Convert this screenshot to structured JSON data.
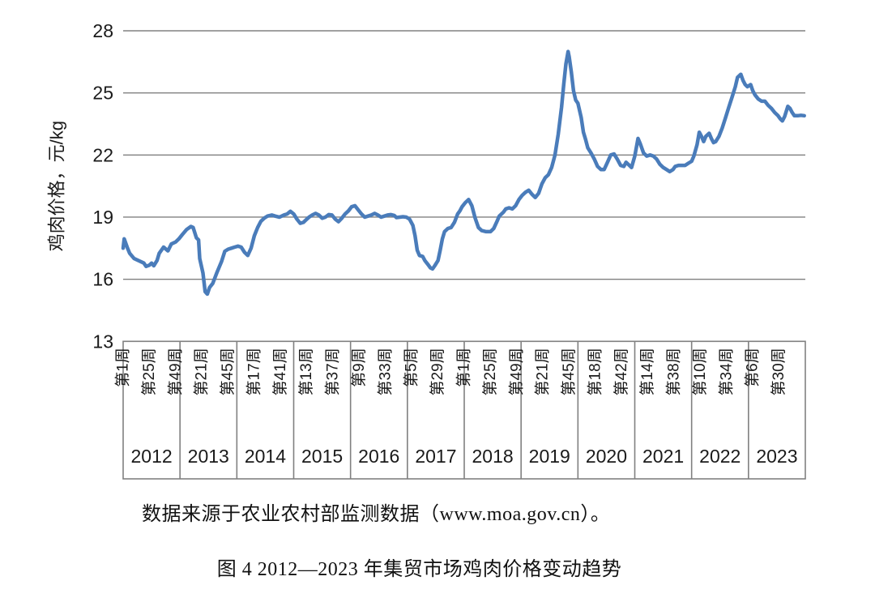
{
  "source_note": "数据来源于农业农村部监测数据（www.moa.gov.cn）。",
  "caption": "图 4 2012—2023 年集贸市场鸡肉价格变动趋势",
  "colors": {
    "line": "#4a7cba",
    "grid": "#808080",
    "box": "#808080",
    "text": "#1a1a1a"
  },
  "chart_data": {
    "type": "line",
    "title": "图 4 2012—2023 年集贸市场鸡肉价格变动趋势",
    "ylabel": "鸡肉价格，元/kg",
    "xlabel": "",
    "ylim": [
      13,
      28
    ],
    "y_ticks": [
      28,
      25,
      22,
      19,
      16,
      13
    ],
    "grid": "horizontal",
    "legend": "none",
    "weeks_per_year": 52,
    "tick_interval_weeks": 24,
    "week_tick_labels": [
      "第1周",
      "第25周",
      "第49周",
      "第21周",
      "第45周",
      "第17周",
      "第41周",
      "第13周",
      "第37周",
      "第9周",
      "第33周",
      "第5周",
      "第29周",
      "第1周",
      "第25周",
      "第49周",
      "第21周",
      "第45周",
      "第18周",
      "第42周",
      "第14周",
      "第38周",
      "第10周",
      "第34周",
      "第6周",
      "第30周"
    ],
    "year_labels": [
      "2012",
      "2013",
      "2014",
      "2015",
      "2016",
      "2017",
      "2018",
      "2019",
      "2020",
      "2021",
      "2022",
      "2023"
    ],
    "series": [
      {
        "name": "集贸市场鸡肉价格",
        "unit": "元/kg",
        "points": [
          [
            0,
            17.5
          ],
          [
            1,
            17.95
          ],
          [
            4,
            17.5
          ],
          [
            6,
            17.25
          ],
          [
            10,
            17.0
          ],
          [
            13,
            16.93
          ],
          [
            19,
            16.78
          ],
          [
            21,
            16.62
          ],
          [
            24,
            16.68
          ],
          [
            26,
            16.78
          ],
          [
            28,
            16.65
          ],
          [
            31,
            16.9
          ],
          [
            33,
            17.25
          ],
          [
            37,
            17.55
          ],
          [
            41,
            17.37
          ],
          [
            44,
            17.7
          ],
          [
            48,
            17.8
          ],
          [
            51,
            17.95
          ],
          [
            54,
            18.15
          ],
          [
            58,
            18.4
          ],
          [
            62,
            18.55
          ],
          [
            64,
            18.5
          ],
          [
            67,
            18.0
          ],
          [
            69,
            17.9
          ],
          [
            70,
            17.0
          ],
          [
            73,
            16.3
          ],
          [
            75,
            15.4
          ],
          [
            77,
            15.28
          ],
          [
            79,
            15.6
          ],
          [
            82,
            15.8
          ],
          [
            86,
            16.35
          ],
          [
            90,
            16.85
          ],
          [
            93,
            17.35
          ],
          [
            96,
            17.45
          ],
          [
            99,
            17.5
          ],
          [
            102,
            17.55
          ],
          [
            105,
            17.6
          ],
          [
            108,
            17.55
          ],
          [
            111,
            17.3
          ],
          [
            114,
            17.15
          ],
          [
            117,
            17.5
          ],
          [
            120,
            18.1
          ],
          [
            123,
            18.5
          ],
          [
            126,
            18.8
          ],
          [
            129,
            18.95
          ],
          [
            132,
            19.05
          ],
          [
            136,
            19.1
          ],
          [
            139,
            19.05
          ],
          [
            143,
            19.0
          ],
          [
            147,
            19.1
          ],
          [
            150,
            19.15
          ],
          [
            153,
            19.28
          ],
          [
            156,
            19.15
          ],
          [
            159,
            18.9
          ],
          [
            162,
            18.7
          ],
          [
            165,
            18.75
          ],
          [
            167,
            18.85
          ],
          [
            170,
            19.0
          ],
          [
            173,
            19.1
          ],
          [
            176,
            19.18
          ],
          [
            179,
            19.1
          ],
          [
            182,
            18.95
          ],
          [
            185,
            19.0
          ],
          [
            188,
            19.12
          ],
          [
            191,
            19.1
          ],
          [
            194,
            18.9
          ],
          [
            197,
            18.78
          ],
          [
            200,
            18.95
          ],
          [
            203,
            19.15
          ],
          [
            206,
            19.3
          ],
          [
            209,
            19.5
          ],
          [
            212,
            19.55
          ],
          [
            215,
            19.35
          ],
          [
            218,
            19.15
          ],
          [
            221,
            19.0
          ],
          [
            224,
            19.05
          ],
          [
            227,
            19.1
          ],
          [
            230,
            19.18
          ],
          [
            233,
            19.1
          ],
          [
            236,
            19.0
          ],
          [
            239,
            19.05
          ],
          [
            242,
            19.1
          ],
          [
            245,
            19.12
          ],
          [
            248,
            19.08
          ],
          [
            250,
            18.98
          ],
          [
            253,
            19.0
          ],
          [
            256,
            19.02
          ],
          [
            259,
            19.0
          ],
          [
            262,
            18.9
          ],
          [
            265,
            18.6
          ],
          [
            267,
            18.1
          ],
          [
            269,
            17.4
          ],
          [
            271,
            17.15
          ],
          [
            274,
            17.1
          ],
          [
            276,
            16.9
          ],
          [
            279,
            16.7
          ],
          [
            281,
            16.55
          ],
          [
            283,
            16.5
          ],
          [
            285,
            16.65
          ],
          [
            288,
            16.9
          ],
          [
            290,
            17.4
          ],
          [
            292,
            17.95
          ],
          [
            294,
            18.3
          ],
          [
            297,
            18.45
          ],
          [
            300,
            18.5
          ],
          [
            303,
            18.75
          ],
          [
            306,
            19.15
          ],
          [
            308,
            19.3
          ],
          [
            310,
            19.5
          ],
          [
            313,
            19.7
          ],
          [
            316,
            19.85
          ],
          [
            319,
            19.55
          ],
          [
            322,
            18.95
          ],
          [
            325,
            18.5
          ],
          [
            328,
            18.35
          ],
          [
            332,
            18.3
          ],
          [
            336,
            18.3
          ],
          [
            339,
            18.45
          ],
          [
            342,
            18.8
          ],
          [
            344,
            19.05
          ],
          [
            348,
            19.25
          ],
          [
            350,
            19.4
          ],
          [
            353,
            19.45
          ],
          [
            356,
            19.4
          ],
          [
            359,
            19.55
          ],
          [
            362,
            19.85
          ],
          [
            365,
            20.05
          ],
          [
            368,
            20.2
          ],
          [
            371,
            20.3
          ],
          [
            374,
            20.1
          ],
          [
            377,
            19.95
          ],
          [
            380,
            20.15
          ],
          [
            383,
            20.6
          ],
          [
            386,
            20.9
          ],
          [
            389,
            21.05
          ],
          [
            392,
            21.4
          ],
          [
            395,
            22.0
          ],
          [
            398,
            23.0
          ],
          [
            401,
            24.3
          ],
          [
            403,
            25.4
          ],
          [
            405,
            26.4
          ],
          [
            407,
            27.0
          ],
          [
            408,
            26.75
          ],
          [
            410,
            26.0
          ],
          [
            412,
            25.1
          ],
          [
            414,
            24.65
          ],
          [
            416,
            24.5
          ],
          [
            419,
            23.8
          ],
          [
            421,
            23.1
          ],
          [
            423,
            22.75
          ],
          [
            425,
            22.35
          ],
          [
            428,
            22.1
          ],
          [
            431,
            21.8
          ],
          [
            434,
            21.45
          ],
          [
            437,
            21.3
          ],
          [
            440,
            21.3
          ],
          [
            443,
            21.65
          ],
          [
            446,
            22.0
          ],
          [
            449,
            22.05
          ],
          [
            452,
            21.8
          ],
          [
            455,
            21.5
          ],
          [
            458,
            21.45
          ],
          [
            460,
            21.65
          ],
          [
            463,
            21.5
          ],
          [
            465,
            21.4
          ],
          [
            468,
            21.95
          ],
          [
            471,
            22.8
          ],
          [
            473,
            22.55
          ],
          [
            476,
            22.1
          ],
          [
            479,
            21.95
          ],
          [
            482,
            22.0
          ],
          [
            485,
            21.95
          ],
          [
            488,
            21.8
          ],
          [
            491,
            21.55
          ],
          [
            494,
            21.4
          ],
          [
            497,
            21.3
          ],
          [
            500,
            21.2
          ],
          [
            503,
            21.3
          ],
          [
            505,
            21.45
          ],
          [
            508,
            21.5
          ],
          [
            511,
            21.5
          ],
          [
            514,
            21.5
          ],
          [
            517,
            21.6
          ],
          [
            520,
            21.7
          ],
          [
            522,
            21.95
          ],
          [
            525,
            22.5
          ],
          [
            527,
            23.1
          ],
          [
            529,
            22.9
          ],
          [
            531,
            22.65
          ],
          [
            533,
            22.9
          ],
          [
            536,
            23.05
          ],
          [
            538,
            22.8
          ],
          [
            540,
            22.6
          ],
          [
            542,
            22.65
          ],
          [
            545,
            22.9
          ],
          [
            548,
            23.3
          ],
          [
            551,
            23.8
          ],
          [
            554,
            24.3
          ],
          [
            557,
            24.8
          ],
          [
            560,
            25.3
          ],
          [
            562,
            25.75
          ],
          [
            565,
            25.9
          ],
          [
            567,
            25.6
          ],
          [
            569,
            25.4
          ],
          [
            571,
            25.3
          ],
          [
            574,
            25.4
          ],
          [
            576,
            25.1
          ],
          [
            578,
            24.9
          ],
          [
            581,
            24.7
          ],
          [
            584,
            24.6
          ],
          [
            587,
            24.6
          ],
          [
            590,
            24.4
          ],
          [
            593,
            24.25
          ],
          [
            596,
            24.05
          ],
          [
            599,
            23.9
          ],
          [
            601,
            23.75
          ],
          [
            603,
            23.65
          ],
          [
            605,
            23.85
          ],
          [
            608,
            24.35
          ],
          [
            610,
            24.25
          ],
          [
            612,
            24.05
          ],
          [
            614,
            23.9
          ],
          [
            617,
            23.9
          ],
          [
            620,
            23.92
          ],
          [
            623,
            23.9
          ]
        ]
      }
    ]
  }
}
